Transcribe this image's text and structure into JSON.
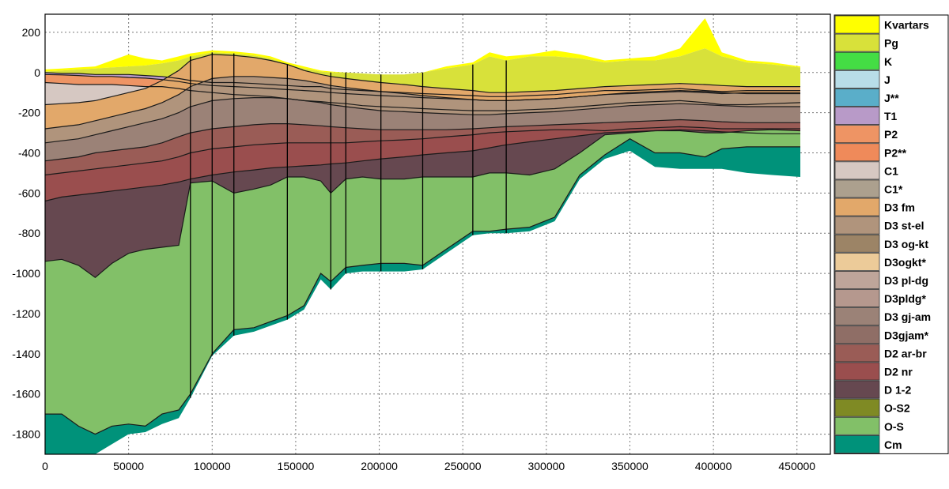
{
  "chart_data": {
    "type": "area",
    "title": "",
    "xlabel": "",
    "ylabel": "",
    "xlim": [
      0,
      470000
    ],
    "ylim": [
      -1900,
      290
    ],
    "grid": true,
    "legend_position": "right",
    "x_ticks": [
      "0",
      "50000",
      "100000",
      "150000",
      "200000",
      "250000",
      "300000",
      "350000",
      "400000",
      "450000"
    ],
    "y_ticks": [
      "200",
      "0",
      "-200",
      "-400",
      "-600",
      "-800",
      "-1000",
      "-1200",
      "-1400",
      "-1600",
      "-1800"
    ],
    "x": [
      0,
      10000,
      20000,
      30000,
      40000,
      50000,
      60000,
      70000,
      80000,
      87000,
      100000,
      113000,
      125000,
      135000,
      145000,
      155000,
      165000,
      171000,
      180000,
      190000,
      201000,
      215000,
      226000,
      240000,
      256000,
      266000,
      276000,
      290000,
      305000,
      320000,
      335000,
      350000,
      365000,
      380000,
      395000,
      405000,
      420000,
      435000,
      452000
    ],
    "tops": {
      "Kvartars": [
        15,
        20,
        25,
        30,
        60,
        90,
        70,
        60,
        80,
        95,
        110,
        105,
        95,
        80,
        50,
        30,
        10,
        5,
        0,
        -5,
        -10,
        -10,
        0,
        30,
        50,
        100,
        80,
        90,
        110,
        90,
        60,
        70,
        80,
        120,
        270,
        100,
        60,
        50,
        30
      ],
      "Pg": [
        5,
        10,
        15,
        20,
        25,
        30,
        35,
        45,
        60,
        80,
        100,
        95,
        85,
        70,
        40,
        20,
        5,
        0,
        0,
        -5,
        -10,
        -10,
        0,
        20,
        40,
        80,
        60,
        80,
        80,
        70,
        50,
        60,
        60,
        80,
        120,
        80,
        50,
        40,
        25
      ],
      "T1": [
        0,
        -5,
        -5,
        -10,
        -10,
        -10,
        -15,
        -20,
        -30,
        -40,
        -50,
        -50,
        -55,
        -60,
        -65,
        -70,
        -70,
        -80,
        -85,
        -90,
        -95,
        -100,
        -105,
        -110,
        -115,
        -120,
        -120,
        -115,
        -110,
        -100,
        -90,
        -90,
        -85,
        -80,
        -90,
        -95,
        -90,
        -90,
        -90
      ],
      "P2": [
        -10,
        -12,
        -15,
        -20,
        -20,
        -25,
        -28,
        -35,
        -45,
        -55,
        -65,
        -70,
        -75,
        -80,
        -85,
        -90,
        -95,
        -100,
        -105,
        -110,
        -115,
        -120,
        -125,
        -130,
        -135,
        -140,
        -140,
        -135,
        -130,
        -120,
        -110,
        -105,
        -100,
        -95,
        -100,
        -105,
        -100,
        -100,
        -100
      ],
      "C1": [
        -50,
        -55,
        -60,
        -60,
        -60,
        -65,
        -70,
        -70,
        -80,
        -90,
        -100,
        -110,
        -115,
        -120,
        -130,
        -140,
        -145,
        -150,
        -155,
        -165,
        -170,
        -175,
        -180,
        -185,
        -190,
        -190,
        -190,
        -185,
        -180,
        -170,
        -160,
        -150,
        -145,
        -140,
        -150,
        -160,
        -160,
        -155,
        -150
      ],
      "D3 fm": [
        -160,
        -155,
        -150,
        -140,
        -120,
        -100,
        -80,
        -40,
        10,
        60,
        90,
        85,
        75,
        60,
        40,
        10,
        -10,
        -20,
        -30,
        -40,
        -50,
        -60,
        -70,
        -80,
        -90,
        -100,
        -100,
        -95,
        -90,
        -80,
        -70,
        -65,
        -60,
        -55,
        -60,
        -65,
        -70,
        -70,
        -70
      ],
      "D3 st-el": [
        -280,
        -270,
        -260,
        -240,
        -220,
        -200,
        -180,
        -150,
        -110,
        -70,
        -30,
        -20,
        -20,
        -25,
        -30,
        -40,
        -55,
        -65,
        -75,
        -85,
        -95,
        -105,
        -115,
        -125,
        -135,
        -140,
        -140,
        -135,
        -130,
        -120,
        -110,
        -100,
        -95,
        -90,
        -95,
        -100,
        -105,
        -105,
        -105
      ],
      "D3 gj-am": [
        -350,
        -340,
        -330,
        -310,
        -290,
        -270,
        -250,
        -230,
        -200,
        -170,
        -140,
        -130,
        -125,
        -125,
        -130,
        -140,
        -150,
        -160,
        -170,
        -180,
        -190,
        -195,
        -200,
        -205,
        -210,
        -210,
        -205,
        -200,
        -195,
        -185,
        -175,
        -165,
        -160,
        -155,
        -160,
        -165,
        -170,
        -170,
        -170
      ],
      "D2 ar-br": [
        -440,
        -430,
        -420,
        -400,
        -390,
        -380,
        -370,
        -350,
        -320,
        -300,
        -280,
        -270,
        -260,
        -255,
        -255,
        -260,
        -265,
        -270,
        -275,
        -280,
        -285,
        -285,
        -285,
        -285,
        -280,
        -275,
        -270,
        -265,
        -260,
        -255,
        -250,
        -245,
        -240,
        -235,
        -240,
        -245,
        -250,
        -250,
        -250
      ],
      "D2 nr": [
        -510,
        -500,
        -490,
        -480,
        -470,
        -460,
        -450,
        -440,
        -420,
        -400,
        -380,
        -370,
        -360,
        -355,
        -350,
        -350,
        -350,
        -350,
        -350,
        -345,
        -340,
        -335,
        -330,
        -320,
        -310,
        -300,
        -295,
        -290,
        -285,
        -285,
        -290,
        -280,
        -275,
        -270,
        -275,
        -280,
        -280,
        -280,
        -280
      ],
      "D 1-2": [
        -640,
        -620,
        -610,
        -600,
        -590,
        -580,
        -570,
        -560,
        -545,
        -530,
        -510,
        -495,
        -485,
        -475,
        -470,
        -465,
        -460,
        -455,
        -450,
        -440,
        -430,
        -420,
        -410,
        -400,
        -390,
        -375,
        -360,
        -345,
        -330,
        -315,
        -300,
        -295,
        -290,
        -285,
        -290,
        -295,
        -300,
        -305,
        -305
      ],
      "O-S": [
        -940,
        -930,
        -960,
        -1020,
        -950,
        -900,
        -880,
        -870,
        -860,
        -550,
        -540,
        -600,
        -580,
        -560,
        -520,
        -520,
        -540,
        -600,
        -530,
        -520,
        -530,
        -530,
        -520,
        -520,
        -520,
        -500,
        -500,
        -510,
        -480,
        -400,
        -310,
        -300,
        -290,
        -290,
        -300,
        -300,
        -290,
        -285,
        -290
      ],
      "Cm": [
        -1700,
        -1700,
        -1760,
        -1800,
        -1760,
        -1750,
        -1760,
        -1700,
        -1680,
        -1600,
        -1400,
        -1280,
        -1270,
        -1240,
        -1210,
        -1160,
        -1000,
        -1040,
        -970,
        -960,
        -950,
        -950,
        -960,
        -880,
        -790,
        -790,
        -780,
        -770,
        -720,
        -510,
        -410,
        -330,
        -400,
        -400,
        -420,
        -380,
        -370,
        -370,
        -370
      ]
    },
    "base": [
      -1900,
      -1900,
      -1900,
      -1900,
      -1850,
      -1800,
      -1790,
      -1750,
      -1720,
      -1620,
      -1410,
      -1310,
      -1290,
      -1260,
      -1230,
      -1180,
      -1030,
      -1080,
      -1000,
      -990,
      -990,
      -990,
      -980,
      -900,
      -810,
      -800,
      -800,
      -790,
      -740,
      -530,
      -430,
      -390,
      -470,
      -480,
      -480,
      -480,
      -500,
      -510,
      -520
    ],
    "faults_x": [
      87000,
      100000,
      113000,
      145000,
      171000,
      180000,
      201000,
      226000,
      256000,
      276000
    ],
    "legend": [
      {
        "name": "Kvartars",
        "color": "#ffff00"
      },
      {
        "name": "Pg",
        "color": "#d8e13a"
      },
      {
        "name": "K",
        "color": "#44dd44"
      },
      {
        "name": "J",
        "color": "#b8dde8"
      },
      {
        "name": "J**",
        "color": "#5aaec9"
      },
      {
        "name": "T1",
        "color": "#b89ac8"
      },
      {
        "name": "P2",
        "color": "#ee9464"
      },
      {
        "name": "P2**",
        "color": "#ef8a5a"
      },
      {
        "name": "C1",
        "color": "#d6c8c2"
      },
      {
        "name": "C1*",
        "color": "#aca08e"
      },
      {
        "name": "D3 fm",
        "color": "#e2a86a"
      },
      {
        "name": "D3 st-el",
        "color": "#b0947c"
      },
      {
        "name": "D3 og-kt",
        "color": "#9c8466"
      },
      {
        "name": "D3ogkt*",
        "color": "#eccb99"
      },
      {
        "name": "D3 pl-dg",
        "color": "#bea59a"
      },
      {
        "name": "D3pldg*",
        "color": "#b5988e"
      },
      {
        "name": "D3 gj-am",
        "color": "#9b8277"
      },
      {
        "name": "D3gjam*",
        "color": "#8f6e66"
      },
      {
        "name": "D2 ar-br",
        "color": "#9a5c56"
      },
      {
        "name": "D2 nr",
        "color": "#9a4e4e"
      },
      {
        "name": "D 1-2",
        "color": "#664850"
      },
      {
        "name": "O-S2",
        "color": "#7f8a24"
      },
      {
        "name": "O-S",
        "color": "#82c068"
      },
      {
        "name": "Cm",
        "color": "#00927a"
      }
    ]
  }
}
